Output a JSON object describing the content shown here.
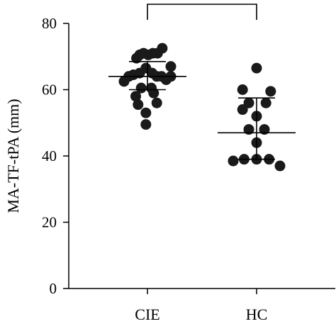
{
  "chart_data": {
    "type": "scatter",
    "ylabel": "MA-TF-tPA (mm)",
    "xlabel": "",
    "categories": [
      "CIE",
      "HC"
    ],
    "ylim": [
      0,
      80
    ],
    "yticks": [
      0,
      20,
      40,
      60,
      80
    ],
    "grid": false,
    "significance_bracket": {
      "from": "CIE",
      "to": "HC"
    },
    "groups": [
      {
        "category": "CIE",
        "points": [
          {
            "dx": -0.3,
            "y": 62.5
          },
          {
            "dx": -0.24,
            "y": 64.0
          },
          {
            "dx": -0.18,
            "y": 64.5
          },
          {
            "dx": -0.14,
            "y": 69.5
          },
          {
            "dx": -0.1,
            "y": 70.5
          },
          {
            "dx": -0.05,
            "y": 71.0
          },
          {
            "dx": 0.01,
            "y": 70.5
          },
          {
            "dx": 0.07,
            "y": 71.0
          },
          {
            "dx": 0.13,
            "y": 71.0
          },
          {
            "dx": 0.19,
            "y": 72.5
          },
          {
            "dx": -0.1,
            "y": 65.0
          },
          {
            "dx": -0.02,
            "y": 66.5
          },
          {
            "dx": 0.06,
            "y": 65.0
          },
          {
            "dx": 0.12,
            "y": 64.0
          },
          {
            "dx": 0.18,
            "y": 64.0
          },
          {
            "dx": 0.24,
            "y": 63.0
          },
          {
            "dx": 0.3,
            "y": 64.0
          },
          {
            "dx": 0.3,
            "y": 67.0
          },
          {
            "dx": 0.05,
            "y": 60.5
          },
          {
            "dx": -0.08,
            "y": 60.5
          },
          {
            "dx": -0.15,
            "y": 58.0
          },
          {
            "dx": 0.08,
            "y": 59.0
          },
          {
            "dx": -0.12,
            "y": 55.5
          },
          {
            "dx": 0.12,
            "y": 56.0
          },
          {
            "dx": -0.02,
            "y": 53.0
          },
          {
            "dx": -0.02,
            "y": 49.5
          }
        ],
        "mean": 64.0,
        "sd_upper": 68.5,
        "sd_lower": 60.0
      },
      {
        "category": "HC",
        "points": [
          {
            "dx": 0.0,
            "y": 66.5
          },
          {
            "dx": -0.18,
            "y": 60.0
          },
          {
            "dx": 0.18,
            "y": 59.5
          },
          {
            "dx": -0.1,
            "y": 56.0
          },
          {
            "dx": 0.12,
            "y": 56.0
          },
          {
            "dx": -0.18,
            "y": 54.0
          },
          {
            "dx": 0.0,
            "y": 52.0
          },
          {
            "dx": -0.1,
            "y": 48.0
          },
          {
            "dx": 0.1,
            "y": 48.0
          },
          {
            "dx": 0.0,
            "y": 44.0
          },
          {
            "dx": -0.3,
            "y": 38.5
          },
          {
            "dx": -0.16,
            "y": 39.0
          },
          {
            "dx": 0.0,
            "y": 39.0
          },
          {
            "dx": 0.16,
            "y": 39.0
          },
          {
            "dx": 0.3,
            "y": 37.0
          }
        ],
        "mean": 47.0,
        "sd_upper": 57.5,
        "sd_lower": 39.0
      }
    ]
  }
}
